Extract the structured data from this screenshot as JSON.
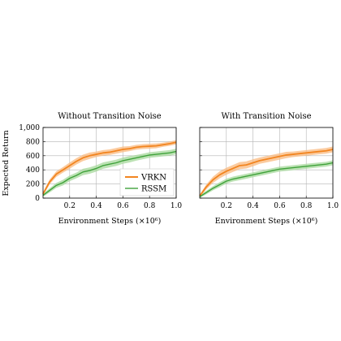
{
  "chart_data": [
    {
      "type": "line",
      "title": "Without Transition Noise",
      "xlabel": "Environment Steps (×10⁶)",
      "ylabel": "Expected Return",
      "xlim": [
        0,
        1.0
      ],
      "ylim": [
        0,
        1000
      ],
      "xticks": [
        "0.2",
        "0.4",
        "0.6",
        "0.8",
        "1.0"
      ],
      "xtick_values": [
        0.2,
        0.4,
        0.6,
        0.8,
        1.0
      ],
      "yticks": [
        "0",
        "200",
        "400",
        "600",
        "800",
        "1,000"
      ],
      "ytick_values": [
        0,
        200,
        400,
        600,
        800,
        1000
      ],
      "grid": true,
      "legend": "bottom-right",
      "x": [
        0.0,
        0.05,
        0.1,
        0.15,
        0.2,
        0.25,
        0.3,
        0.35,
        0.4,
        0.45,
        0.5,
        0.55,
        0.6,
        0.65,
        0.7,
        0.75,
        0.8,
        0.85,
        0.9,
        0.95,
        1.0
      ],
      "series": [
        {
          "name": "VRKN",
          "color": "#f28520",
          "band_color": "#f9b97f",
          "values": [
            60,
            230,
            340,
            400,
            460,
            520,
            570,
            600,
            620,
            640,
            650,
            670,
            690,
            700,
            720,
            730,
            735,
            740,
            755,
            770,
            790
          ],
          "band": [
            25,
            35,
            40,
            40,
            45,
            45,
            45,
            45,
            40,
            40,
            40,
            40,
            40,
            35,
            35,
            35,
            35,
            35,
            30,
            30,
            30
          ]
        },
        {
          "name": "RSSM",
          "color": "#3fa23a",
          "band_color": "#a6d89b",
          "values": [
            40,
            110,
            180,
            220,
            280,
            320,
            370,
            390,
            420,
            460,
            480,
            500,
            530,
            550,
            570,
            590,
            610,
            620,
            630,
            640,
            660
          ],
          "band": [
            20,
            30,
            35,
            40,
            40,
            40,
            45,
            45,
            45,
            45,
            45,
            45,
            45,
            45,
            40,
            40,
            40,
            40,
            40,
            40,
            40
          ]
        }
      ]
    },
    {
      "type": "line",
      "title": "With Transition Noise",
      "xlabel": "Environment Steps (×10⁶)",
      "ylabel": "",
      "xlim": [
        0,
        1.0
      ],
      "ylim": [
        0,
        1000
      ],
      "xticks": [
        "0.2",
        "0.4",
        "0.6",
        "0.8",
        "1.0"
      ],
      "xtick_values": [
        0.2,
        0.4,
        0.6,
        0.8,
        1.0
      ],
      "grid": true,
      "x": [
        0.0,
        0.05,
        0.1,
        0.15,
        0.2,
        0.25,
        0.3,
        0.35,
        0.4,
        0.45,
        0.5,
        0.55,
        0.6,
        0.65,
        0.7,
        0.75,
        0.8,
        0.85,
        0.9,
        0.95,
        1.0
      ],
      "series": [
        {
          "name": "VRKN",
          "color": "#f28520",
          "band_color": "#f9b97f",
          "values": [
            30,
            160,
            260,
            330,
            380,
            420,
            460,
            470,
            500,
            530,
            550,
            570,
            590,
            610,
            620,
            630,
            640,
            650,
            660,
            670,
            690
          ],
          "band": [
            20,
            35,
            45,
            50,
            50,
            50,
            50,
            50,
            50,
            45,
            45,
            45,
            45,
            45,
            40,
            40,
            40,
            40,
            40,
            40,
            40
          ]
        },
        {
          "name": "RSSM",
          "color": "#3fa23a",
          "band_color": "#a6d89b",
          "values": [
            20,
            80,
            140,
            190,
            240,
            270,
            290,
            310,
            330,
            350,
            370,
            390,
            410,
            420,
            430,
            440,
            450,
            460,
            470,
            480,
            500
          ],
          "band": [
            15,
            25,
            30,
            35,
            35,
            35,
            35,
            35,
            35,
            35,
            35,
            35,
            35,
            35,
            35,
            35,
            35,
            35,
            35,
            35,
            35
          ]
        }
      ]
    }
  ]
}
